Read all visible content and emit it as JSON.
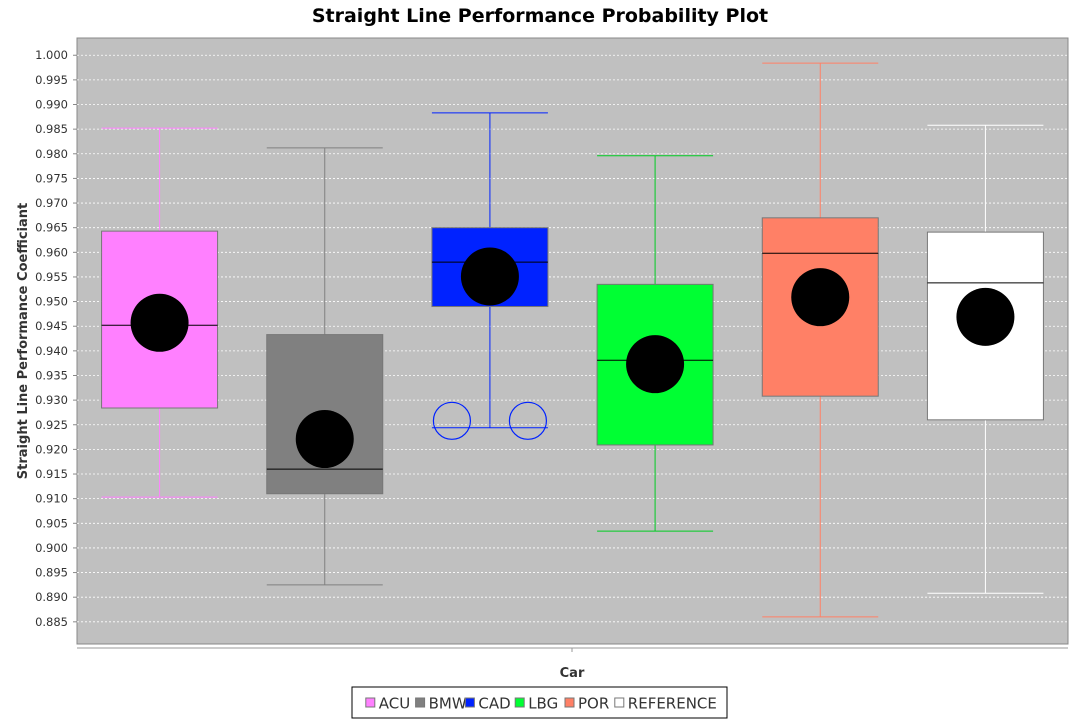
{
  "chart_data": {
    "type": "box",
    "title": "Straight Line Performance Probability Plot",
    "xlabel": "Car",
    "ylabel": "Straight Line Performance Coefficiant",
    "ylim": [
      0.8805,
      1.0035
    ],
    "yticks": [
      "0.885",
      "0.890",
      "0.895",
      "0.900",
      "0.905",
      "0.910",
      "0.915",
      "0.920",
      "0.925",
      "0.930",
      "0.935",
      "0.940",
      "0.945",
      "0.950",
      "0.955",
      "0.960",
      "0.965",
      "0.970",
      "0.975",
      "0.980",
      "0.985",
      "0.990",
      "0.995",
      "1.000"
    ],
    "grid": true,
    "legend_position": "bottom",
    "series": [
      {
        "name": "ACU",
        "color": "#ff80ff",
        "stroke": "#ff80ff",
        "whisker_low": 0.9103,
        "q1": 0.9284,
        "median": 0.9452,
        "q3": 0.9643,
        "whisker_high": 0.9852,
        "mean": 0.9457,
        "outliers": []
      },
      {
        "name": "BMW",
        "color": "#808080",
        "stroke": "#808080",
        "whisker_low": 0.8925,
        "q1": 0.911,
        "median": 0.916,
        "q3": 0.9433,
        "whisker_high": 0.9812,
        "mean": 0.9221,
        "outliers": []
      },
      {
        "name": "CAD",
        "color": "#0022ff",
        "stroke": "#0022ff",
        "whisker_low": 0.9244,
        "q1": 0.949,
        "median": 0.958,
        "q3": 0.965,
        "whisker_high": 0.9883,
        "mean": 0.9551,
        "outliers": [
          0.9258,
          0.9258
        ]
      },
      {
        "name": "LBG",
        "color": "#00ff33",
        "stroke": "#00cc22",
        "whisker_low": 0.9034,
        "q1": 0.9209,
        "median": 0.9381,
        "q3": 0.9535,
        "whisker_high": 0.9796,
        "mean": 0.9373,
        "outliers": []
      },
      {
        "name": "POR",
        "color": "#ff8066",
        "stroke": "#ff8066",
        "whisker_low": 0.886,
        "q1": 0.9308,
        "median": 0.9598,
        "q3": 0.967,
        "whisker_high": 0.9984,
        "mean": 0.9509,
        "outliers": []
      },
      {
        "name": "REFERENCE",
        "color": "#ffffff",
        "stroke": "#ffffff",
        "whisker_low": 0.8908,
        "q1": 0.926,
        "median": 0.9538,
        "q3": 0.9641,
        "whisker_high": 0.9858,
        "mean": 0.9469,
        "outliers": []
      }
    ]
  }
}
